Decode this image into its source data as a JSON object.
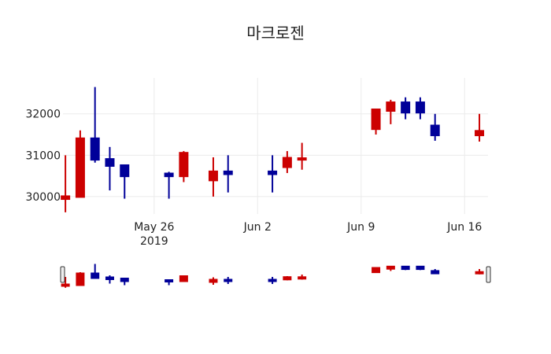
{
  "chart_data": {
    "type": "candlestick",
    "title": "마크로젠",
    "xlabel": "",
    "ylabel": "",
    "ylim": [
      29580,
      32870
    ],
    "yticks": [
      30000,
      31000,
      32000
    ],
    "xticks": [
      {
        "date": "2019-05-26",
        "label": "May 26",
        "sublabel": "2019"
      },
      {
        "date": "2019-06-02",
        "label": "Jun 2"
      },
      {
        "date": "2019-06-09",
        "label": "Jun 9"
      },
      {
        "date": "2019-06-16",
        "label": "Jun 16"
      }
    ],
    "xrange": [
      "2019-05-19T20:00",
      "2019-06-17T14:00"
    ],
    "grid": true,
    "rangeslider": true,
    "increasing_color": "#cc0000",
    "decreasing_color": "#000099",
    "series": [
      {
        "date": "2019-05-20",
        "open": 29950,
        "high": 31000,
        "low": 29620,
        "close": 30000
      },
      {
        "date": "2019-05-21",
        "open": 30000,
        "high": 31600,
        "low": 30000,
        "close": 31400
      },
      {
        "date": "2019-05-22",
        "open": 31400,
        "high": 32650,
        "low": 30820,
        "close": 30900
      },
      {
        "date": "2019-05-23",
        "open": 30900,
        "high": 31200,
        "low": 30150,
        "close": 30750
      },
      {
        "date": "2019-05-24",
        "open": 30750,
        "high": 30750,
        "low": 29950,
        "close": 30500
      },
      {
        "date": "2019-05-27",
        "open": 30550,
        "high": 30600,
        "low": 29950,
        "close": 30500
      },
      {
        "date": "2019-05-28",
        "open": 30500,
        "high": 31100,
        "low": 30350,
        "close": 31050
      },
      {
        "date": "2019-05-30",
        "open": 30400,
        "high": 30950,
        "low": 30000,
        "close": 30600
      },
      {
        "date": "2019-05-31",
        "open": 30600,
        "high": 31000,
        "low": 30100,
        "close": 30550
      },
      {
        "date": "2019-06-03",
        "open": 30600,
        "high": 31000,
        "low": 30100,
        "close": 30550
      },
      {
        "date": "2019-06-04",
        "open": 30720,
        "high": 31100,
        "low": 30570,
        "close": 30930
      },
      {
        "date": "2019-06-05",
        "open": 30900,
        "high": 31300,
        "low": 30650,
        "close": 30920
      },
      {
        "date": "2019-06-10",
        "open": 31640,
        "high": 32100,
        "low": 31500,
        "close": 32100
      },
      {
        "date": "2019-06-11",
        "open": 32080,
        "high": 32340,
        "low": 31750,
        "close": 32270
      },
      {
        "date": "2019-06-12",
        "open": 32270,
        "high": 32400,
        "low": 31870,
        "close": 32040
      },
      {
        "date": "2019-06-13",
        "open": 32270,
        "high": 32400,
        "low": 31870,
        "close": 32040
      },
      {
        "date": "2019-06-14",
        "open": 31710,
        "high": 32000,
        "low": 31350,
        "close": 31490
      },
      {
        "date": "2019-06-17",
        "open": 31490,
        "high": 32000,
        "low": 31330,
        "close": 31580
      }
    ]
  }
}
